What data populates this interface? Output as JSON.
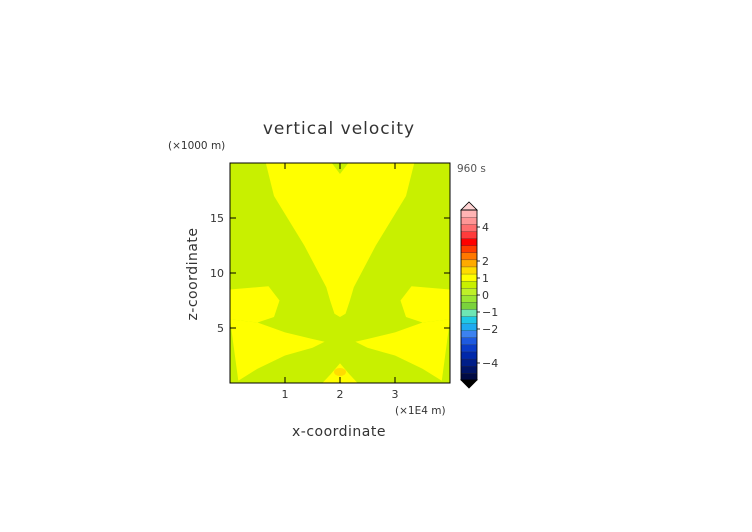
{
  "chart_data": {
    "type": "heatmap",
    "title": "vertical velocity",
    "xlabel": "x-coordinate",
    "ylabel": "z-coordinate",
    "x_unit_label": "(×1E4 m)",
    "y_unit_label": "(×1000 m)",
    "time_label": "960 s",
    "xlim": [
      0,
      4
    ],
    "ylim": [
      0,
      20
    ],
    "x_ticks": [
      1,
      2,
      3
    ],
    "x_tick_labels": [
      "1",
      "2",
      "3"
    ],
    "y_ticks": [
      5,
      10,
      15
    ],
    "y_tick_labels": [
      "5",
      "10",
      "15"
    ],
    "colorbar": {
      "bounds": [
        -5,
        -4.5,
        -4,
        -3.5,
        -3,
        -2.5,
        -2,
        -1.75,
        -1.5,
        -1.25,
        -1,
        -0.75,
        -0.5,
        -0.25,
        0,
        0.5,
        1,
        1.5,
        2,
        2.5,
        3,
        3.5,
        4,
        4.5,
        5
      ],
      "colors": [
        "#000a44",
        "#001466",
        "#001e88",
        "#0028aa",
        "#0a3cc8",
        "#1e5ae0",
        "#3c82f0",
        "#1eaaf0",
        "#1ec8e6",
        "#6ee6b4",
        "#7ad23c",
        "#9be632",
        "#bef028",
        "#c8f000",
        "#ffff00",
        "#ffdc00",
        "#ffaa00",
        "#ff7800",
        "#ff3c00",
        "#ff0000",
        "#ff3c3c",
        "#ff6e6e",
        "#ff9696",
        "#ffb4b4"
      ],
      "tick_values": [
        4,
        2,
        1,
        0,
        -1,
        -2,
        -4
      ],
      "tick_labels": [
        "4",
        "2",
        "1",
        "0",
        "−1",
        "−2",
        "−4"
      ],
      "extend": "both"
    },
    "regions": [
      {
        "level": "(0, 0.5)",
        "color": "#ffff00",
        "vertices": [
          [
            1.68,
            0
          ],
          [
            1.83,
            0.8
          ],
          [
            2.0,
            1.8
          ],
          [
            2.17,
            0.8
          ],
          [
            2.32,
            0
          ]
        ]
      },
      {
        "level": "(0, 0.5)",
        "color": "#ffff00",
        "vertices": [
          [
            0.15,
            0.2
          ],
          [
            0.5,
            1.3
          ],
          [
            1.0,
            2.5
          ],
          [
            1.5,
            3.2
          ],
          [
            1.72,
            3.75
          ],
          [
            1.5,
            4.0
          ],
          [
            1.0,
            4.6
          ],
          [
            0.5,
            5.5
          ],
          [
            0.0,
            5.8
          ]
        ]
      },
      {
        "level": "(0, 0.5)",
        "color": "#ffff00",
        "vertices": [
          [
            3.85,
            0.2
          ],
          [
            3.5,
            1.3
          ],
          [
            3.0,
            2.5
          ],
          [
            2.5,
            3.2
          ],
          [
            2.28,
            3.75
          ],
          [
            2.5,
            4.0
          ],
          [
            3.0,
            4.6
          ],
          [
            3.5,
            5.5
          ],
          [
            4.0,
            5.8
          ]
        ]
      },
      {
        "level": "(0, 0.5)",
        "color": "#ffff00",
        "vertices": [
          [
            0.0,
            8.5
          ],
          [
            0.7,
            8.8
          ],
          [
            0.9,
            7.5
          ],
          [
            0.8,
            6.0
          ],
          [
            0.5,
            5.5
          ],
          [
            0.0,
            5.8
          ]
        ]
      },
      {
        "level": "(0, 0.5)",
        "color": "#ffff00",
        "vertices": [
          [
            4.0,
            8.5
          ],
          [
            3.3,
            8.8
          ],
          [
            3.1,
            7.5
          ],
          [
            3.2,
            6.0
          ],
          [
            3.5,
            5.5
          ],
          [
            4.0,
            5.8
          ]
        ]
      },
      {
        "level": "(0, 0.5)",
        "color": "#ffff00",
        "vertices": [
          [
            0.65,
            20
          ],
          [
            0.8,
            17.0
          ],
          [
            1.35,
            12.5
          ],
          [
            1.75,
            8.7
          ],
          [
            1.82,
            7.5
          ],
          [
            1.9,
            6.3
          ],
          [
            2.0,
            6.0
          ],
          [
            2.1,
            6.3
          ],
          [
            2.18,
            7.5
          ],
          [
            2.25,
            8.7
          ],
          [
            2.65,
            12.5
          ],
          [
            3.2,
            17.0
          ],
          [
            3.35,
            20
          ],
          [
            2.15,
            20
          ],
          [
            2.0,
            19.0
          ],
          [
            1.85,
            20
          ]
        ]
      },
      {
        "level": "(0.5, 1)",
        "color": "#ffdc00",
        "vertices": [
          [
            2.0,
            1.0
          ]
        ]
      }
    ]
  }
}
